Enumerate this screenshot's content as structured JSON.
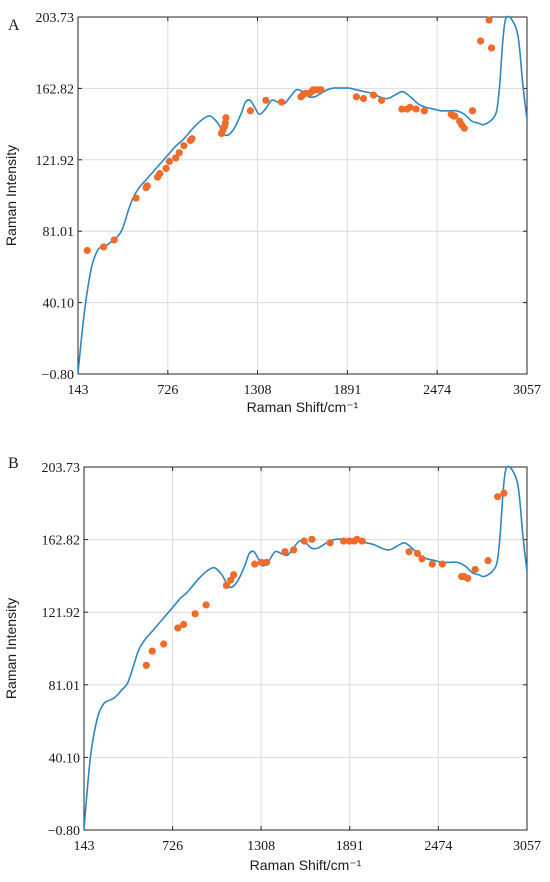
{
  "chart_data": [
    {
      "type": "line",
      "panel_label": "A",
      "xlabel": "Raman Shift/cm⁻¹",
      "ylabel": "Raman Intensity",
      "xlim": [
        143,
        3057
      ],
      "ylim": [
        -0.8,
        203.73
      ],
      "x_ticks": [
        "143",
        "726",
        "1308",
        "1891",
        "2474",
        "3057"
      ],
      "y_ticks": [
        "-0.80",
        "40.10",
        "81.01",
        "121.92",
        "162.82",
        "203.73"
      ],
      "grid": true,
      "colors": {
        "line": "#2e86c1",
        "points": "#f06a2a"
      },
      "series": [
        {
          "kind": "spectrum",
          "x": [
            143,
            185,
            230,
            270,
            300,
            330,
            360,
            390,
            430,
            470,
            500,
            540,
            580,
            620,
            660,
            700,
            740,
            780,
            820,
            860,
            900,
            950,
            1000,
            1050,
            1100,
            1150,
            1200,
            1230,
            1260,
            1290,
            1320,
            1360,
            1400,
            1440,
            1480,
            1520,
            1560,
            1600,
            1640,
            1680,
            1720,
            1760,
            1800,
            1850,
            1900,
            1950,
            2000,
            2050,
            2100,
            2150,
            2200,
            2250,
            2300,
            2350,
            2400,
            2450,
            2500,
            2550,
            2600,
            2650,
            2700,
            2740,
            2770,
            2800,
            2830,
            2860,
            2880,
            2900,
            2920,
            2960,
            3000,
            3030,
            3057
          ],
          "y": [
            0,
            35,
            60,
            70,
            72,
            73,
            75,
            77,
            82,
            93,
            100,
            106,
            110,
            114,
            118,
            122,
            126,
            130,
            133,
            137,
            141,
            145,
            147,
            143,
            136,
            139,
            148,
            155,
            156,
            152,
            148,
            151,
            156,
            155,
            154,
            158,
            162,
            161,
            158,
            158,
            160,
            162,
            163,
            163,
            163,
            162,
            161,
            160,
            158,
            157,
            159,
            161,
            158,
            154,
            152,
            151,
            150,
            150,
            150,
            148,
            144,
            143,
            142,
            143,
            145,
            150,
            165,
            190,
            203,
            202,
            192,
            165,
            145
          ]
        },
        {
          "kind": "markers",
          "x": [
            203,
            309,
            378,
            520,
            585,
            592,
            659,
            674,
            715,
            736,
            777,
            800,
            830,
            872,
            883,
            1074,
            1084,
            1094,
            1099,
            1103,
            1262,
            1362,
            1464,
            1590,
            1602,
            1619,
            1644,
            1660,
            1670,
            1694,
            1709,
            1720,
            1950,
            1996,
            2061,
            2113,
            2245,
            2279,
            2298,
            2337,
            2391,
            2565,
            2581,
            2588,
            2620,
            2633,
            2650,
            2703,
            2756,
            2811,
            2827
          ],
          "y": [
            70,
            72,
            76,
            100,
            106,
            107,
            112,
            114,
            117,
            121,
            123,
            126,
            130,
            133,
            134,
            137,
            139,
            141,
            143,
            146,
            150,
            156,
            155,
            158,
            159,
            160,
            160,
            161,
            162,
            162,
            162,
            162,
            158,
            157,
            159,
            156,
            151,
            151,
            152,
            151,
            150,
            148,
            147,
            147,
            144,
            142,
            140,
            150,
            190,
            202,
            186
          ]
        }
      ]
    },
    {
      "type": "line",
      "panel_label": "B",
      "xlabel": "Raman Shift/cm⁻¹",
      "ylabel": "Raman Intensity",
      "xlim": [
        143,
        3057
      ],
      "ylim": [
        -0.8,
        203.73
      ],
      "x_ticks": [
        "143",
        "726",
        "1308",
        "1891",
        "2474",
        "3057"
      ],
      "y_ticks": [
        "-0.80",
        "40.10",
        "81.01",
        "121.92",
        "162.82",
        "203.73"
      ],
      "grid": true,
      "colors": {
        "line": "#2e86c1",
        "points": "#f06a2a"
      },
      "series": [
        {
          "kind": "spectrum",
          "x": [
            143,
            185,
            230,
            270,
            300,
            330,
            360,
            390,
            430,
            470,
            500,
            540,
            580,
            620,
            660,
            700,
            740,
            780,
            820,
            860,
            900,
            950,
            1000,
            1050,
            1100,
            1150,
            1200,
            1230,
            1260,
            1290,
            1320,
            1360,
            1400,
            1440,
            1480,
            1520,
            1560,
            1600,
            1640,
            1680,
            1720,
            1760,
            1800,
            1850,
            1900,
            1950,
            2000,
            2050,
            2100,
            2150,
            2200,
            2250,
            2300,
            2350,
            2400,
            2450,
            2500,
            2550,
            2600,
            2650,
            2700,
            2740,
            2770,
            2800,
            2830,
            2860,
            2880,
            2900,
            2920,
            2960,
            3000,
            3030,
            3057
          ],
          "y": [
            0,
            40,
            62,
            70,
            72,
            73,
            75,
            78,
            82,
            92,
            100,
            106,
            110,
            114,
            118,
            122,
            126,
            130,
            133,
            137,
            141,
            145,
            147,
            143,
            136,
            139,
            148,
            155,
            156,
            152,
            148,
            151,
            156,
            155,
            154,
            158,
            162,
            161,
            158,
            158,
            160,
            162,
            163,
            163,
            163,
            162,
            161,
            160,
            158,
            157,
            159,
            161,
            158,
            154,
            152,
            151,
            150,
            150,
            150,
            148,
            144,
            143,
            142,
            143,
            145,
            150,
            165,
            190,
            203,
            202,
            192,
            165,
            145
          ]
        },
        {
          "kind": "markers",
          "x": [
            553,
            592,
            667,
            760,
            798,
            874,
            946,
            1080,
            1108,
            1128,
            1266,
            1310,
            1344,
            1465,
            1522,
            1592,
            1642,
            1762,
            1850,
            1889,
            1921,
            1939,
            1973,
            2281,
            2336,
            2366,
            2434,
            2500,
            2627,
            2643,
            2667,
            2716,
            2801,
            2864,
            2905
          ],
          "y": [
            92,
            100,
            104,
            113,
            115,
            121,
            126,
            137,
            140,
            143,
            149,
            150,
            150,
            156,
            157,
            162,
            163,
            161,
            162,
            162,
            162,
            163,
            162,
            156,
            155,
            152,
            149,
            149,
            142,
            142,
            141,
            146,
            151,
            187,
            189
          ]
        }
      ]
    }
  ]
}
